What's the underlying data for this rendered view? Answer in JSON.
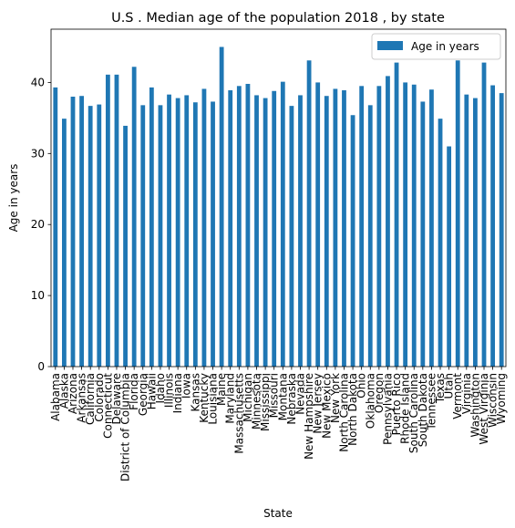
{
  "chart_data": {
    "type": "bar",
    "title": "U.S . Median age of the population 2018 , by state",
    "xlabel": "State",
    "ylabel": "Age in years",
    "ylim": [
      0,
      47.5
    ],
    "yticks": [
      0,
      10,
      20,
      30,
      40
    ],
    "grid": false,
    "legend_position": "top-right",
    "bar_color": "#1f77b4",
    "series": [
      {
        "name": "Age in years"
      }
    ],
    "categories": [
      "Alabama",
      "Alaska",
      "Arizona",
      "Arkansas",
      "California",
      "Colorado",
      "Connecticut",
      "Delaware",
      "District of Columbia",
      "Florida",
      "Georgia",
      "Hawaii",
      "Idaho",
      "Illinois",
      "Indiana",
      "Iowa",
      "Kansas",
      "Kentucky",
      "Louisiana",
      "Maine",
      "Maryland",
      "Massachusetts",
      "Michigan",
      "Minnesota",
      "Mississippi",
      "Missouri",
      "Montana",
      "Nebraska",
      "Nevada",
      "New Hampshire",
      "New Jersey",
      "New Mexico",
      "New York",
      "North Carolina",
      "North Dakota",
      "Ohio",
      "Oklahoma",
      "Oregon",
      "Pennsylvania",
      "Puerto Rico",
      "Rhode Island",
      "South Carolina",
      "South Dakota",
      "Tennessee",
      "Texas",
      "Utah",
      "Vermont",
      "Virginia",
      "Washington",
      "West Virginia",
      "Wisconsin",
      "Wyoming"
    ],
    "values": [
      39.3,
      34.9,
      38.0,
      38.1,
      36.7,
      36.9,
      41.1,
      41.1,
      33.9,
      42.2,
      36.8,
      39.3,
      36.8,
      38.3,
      37.8,
      38.2,
      37.2,
      39.1,
      37.3,
      45.0,
      38.9,
      39.5,
      39.8,
      38.2,
      37.8,
      38.8,
      40.1,
      36.7,
      38.2,
      43.1,
      40.0,
      38.1,
      39.1,
      38.9,
      35.4,
      39.5,
      36.8,
      39.5,
      40.9,
      42.8,
      40.0,
      39.7,
      37.3,
      39.0,
      34.9,
      31.0,
      43.1,
      38.3,
      37.8,
      42.8,
      39.6,
      38.5
    ]
  }
}
